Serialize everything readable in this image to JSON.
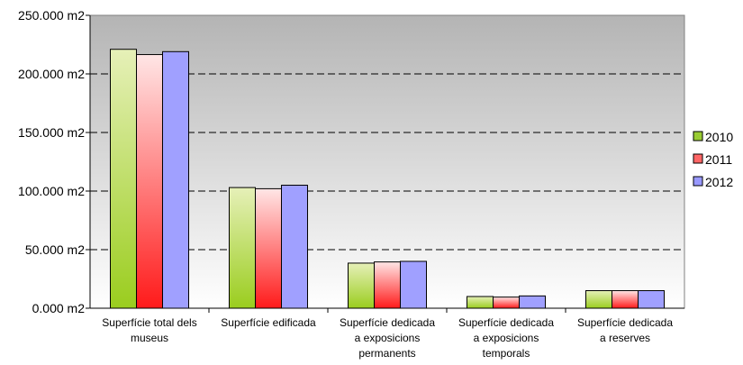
{
  "chart_data": {
    "type": "bar",
    "categories": [
      [
        "Superfície total dels",
        "museus"
      ],
      [
        "Superfície edificada"
      ],
      [
        "Superfície dedicada",
        "a exposicions",
        "permanents"
      ],
      [
        "Superfície dedicada",
        "a exposicions",
        "temporals"
      ],
      [
        "Superfície dedicada",
        "a reserves"
      ]
    ],
    "series": [
      {
        "name": "2010",
        "values": [
          221000,
          103000,
          38500,
          10000,
          15000
        ],
        "color_top": "#e6f0b8",
        "color_bottom": "#9acd1e",
        "legend_color": "#99cc33"
      },
      {
        "name": "2011",
        "values": [
          216500,
          102000,
          39500,
          9500,
          15000
        ],
        "color_top": "#ffe6e6",
        "color_bottom": "#ff1a1a",
        "legend_color": "#ff6666"
      },
      {
        "name": "2012",
        "values": [
          219000,
          105000,
          40000,
          10500,
          15000
        ],
        "color_top": "#a0a0ff",
        "color_bottom": "#a0a0ff",
        "legend_color": "#9999ff"
      }
    ],
    "yticks": [
      "0.000 m2",
      "50.000 m2",
      "100.000 m2",
      "150.000 m2",
      "200.000 m2",
      "250.000 m2"
    ],
    "ylim": [
      0,
      250000
    ],
    "grid": true,
    "legend_position": "right",
    "plot_background": {
      "top": "#b4b4b4",
      "bottom": "#ffffff"
    }
  }
}
